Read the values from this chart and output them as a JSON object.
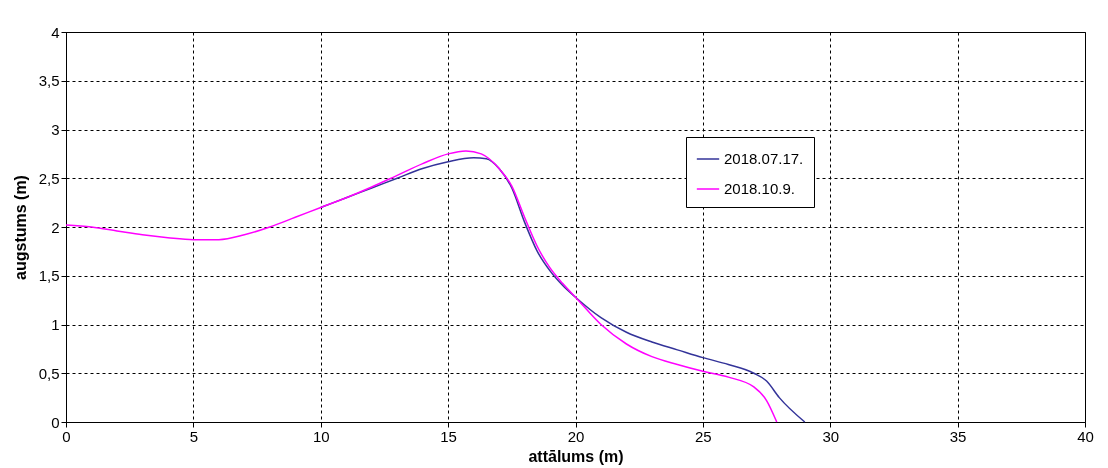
{
  "chart_data": {
    "type": "line",
    "xlabel": "attālums (m)",
    "ylabel": "augstums (m)",
    "xlim": [
      0,
      40
    ],
    "xticks": [
      0,
      5,
      10,
      15,
      20,
      25,
      30,
      35,
      40
    ],
    "ylim": [
      0,
      4
    ],
    "yticks": [
      0,
      {
        "value": 0.5,
        "label": "0,5"
      },
      1,
      {
        "value": 1.5,
        "label": "1,5"
      },
      2,
      {
        "value": 2.5,
        "label": "2,5"
      },
      3,
      {
        "value": 3.5,
        "label": "3,5"
      },
      4
    ],
    "grid": true,
    "legend": "right",
    "line_style": "solid",
    "series": [
      {
        "name": "2018.07.17.",
        "color": "#333399",
        "x": [
          10,
          11,
          12,
          13,
          14,
          15,
          16,
          16.5,
          17,
          17.5,
          18,
          18.5,
          19,
          19.5,
          20,
          21,
          22,
          23,
          24,
          25,
          26,
          27,
          27.5,
          28,
          29
        ],
        "values": [
          2.2,
          2.3,
          2.4,
          2.5,
          2.6,
          2.67,
          2.71,
          2.7,
          2.6,
          2.4,
          2.05,
          1.75,
          1.55,
          1.4,
          1.28,
          1.07,
          0.92,
          0.82,
          0.74,
          0.66,
          0.59,
          0.5,
          0.42,
          0.25,
          0
        ]
      },
      {
        "name": "2018.10.9.",
        "color": "#ff00ff",
        "x": [
          0,
          1,
          2,
          3,
          4,
          5,
          6,
          7,
          8,
          9,
          10,
          11,
          12,
          13,
          14,
          15,
          15.7,
          16.3,
          17,
          17.5,
          18,
          18.5,
          19,
          19.5,
          20,
          21,
          22,
          23,
          24,
          25,
          26,
          27,
          27.5,
          27.9
        ],
        "values": [
          2.02,
          2.0,
          1.96,
          1.92,
          1.89,
          1.87,
          1.87,
          1.92,
          2.0,
          2.1,
          2.2,
          2.3,
          2.41,
          2.53,
          2.65,
          2.75,
          2.78,
          2.75,
          2.6,
          2.42,
          2.1,
          1.8,
          1.58,
          1.42,
          1.28,
          1.0,
          0.8,
          0.67,
          0.59,
          0.52,
          0.46,
          0.36,
          0.22,
          0
        ]
      }
    ]
  }
}
